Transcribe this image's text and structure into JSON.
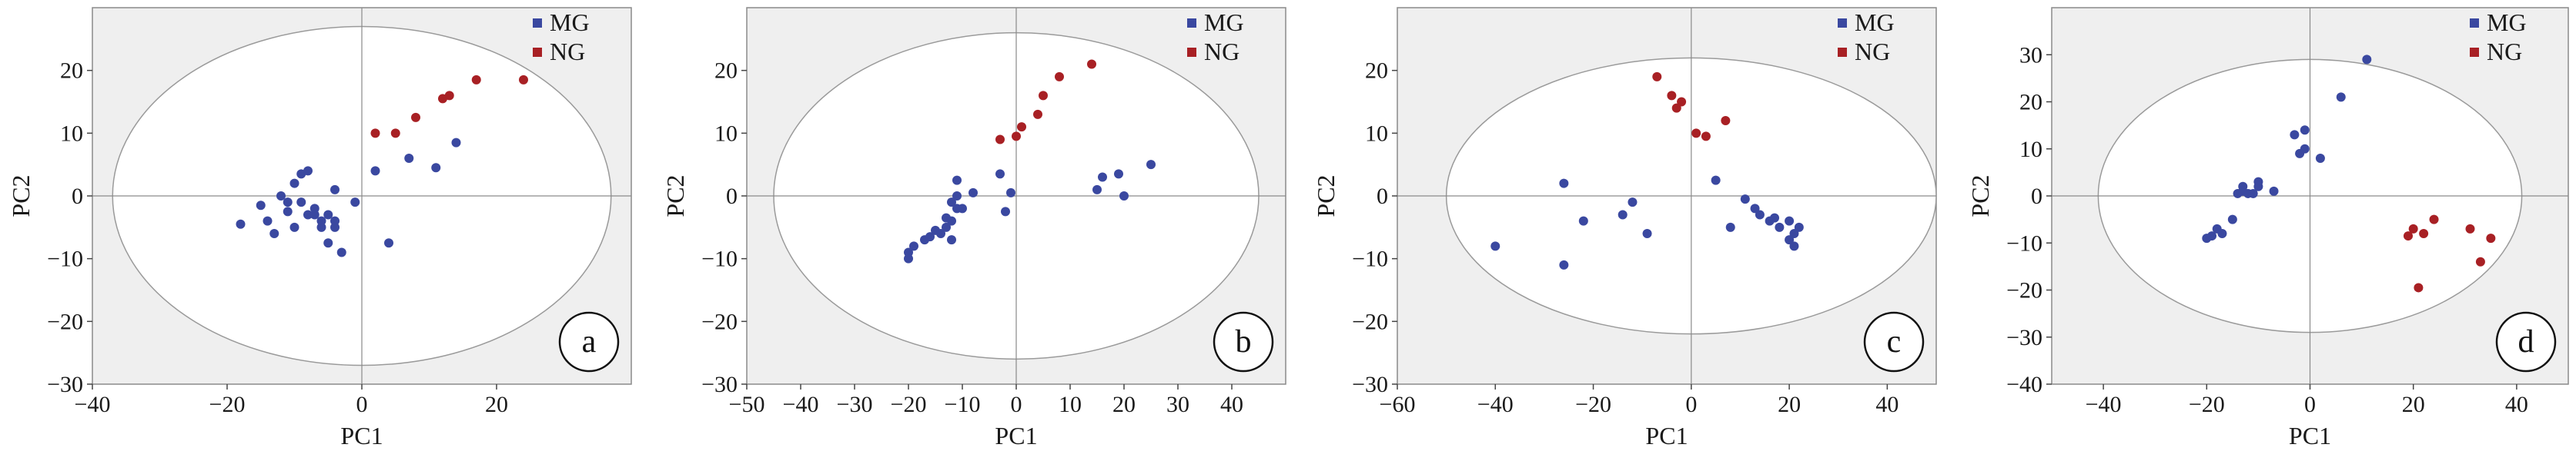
{
  "colors": {
    "MG": "#3a48a0",
    "NG": "#a82024",
    "plot_bg": "#efefef",
    "ellipse_fill": "#ffffff",
    "ellipse_stroke": "#9a9a9a"
  },
  "chart_data": [
    {
      "type": "scatter",
      "panel_label": "a",
      "xlabel": "PC1",
      "ylabel": "PC2",
      "xlim": [
        -40,
        40
      ],
      "ylim": [
        -30,
        30
      ],
      "xticks": [
        -40,
        -20,
        0,
        20
      ],
      "yticks": [
        -30,
        -20,
        -10,
        0,
        10,
        20
      ],
      "xtick_labels": [
        "−40",
        "−20",
        "0",
        "20"
      ],
      "ytick_labels": [
        "−30",
        "−20",
        "−10",
        "0",
        "10",
        "20"
      ],
      "legend": {
        "position": "top-right",
        "entries": [
          "MG",
          "NG"
        ]
      },
      "ellipse": {
        "rx": 37,
        "ry": 27
      },
      "series": [
        {
          "name": "MG",
          "points": [
            [
              -18,
              -4.5
            ],
            [
              -15,
              -1.5
            ],
            [
              -14,
              -4
            ],
            [
              -13,
              -6
            ],
            [
              -12,
              0
            ],
            [
              -11,
              -2.5
            ],
            [
              -11,
              -1
            ],
            [
              -10,
              2
            ],
            [
              -10,
              -5
            ],
            [
              -9,
              -1
            ],
            [
              -9,
              3.5
            ],
            [
              -8,
              4
            ],
            [
              -8,
              -3
            ],
            [
              -7,
              -2
            ],
            [
              -7,
              -3
            ],
            [
              -6,
              -4
            ],
            [
              -6,
              -5
            ],
            [
              -5,
              -7.5
            ],
            [
              -5,
              -3
            ],
            [
              -4,
              1
            ],
            [
              -4,
              -4
            ],
            [
              -4,
              -5
            ],
            [
              -3,
              -9
            ],
            [
              -1,
              -1
            ],
            [
              2,
              4
            ],
            [
              4,
              -7.5
            ],
            [
              7,
              6
            ],
            [
              11,
              4.5
            ],
            [
              14,
              8.5
            ]
          ]
        },
        {
          "name": "NG",
          "points": [
            [
              2,
              10
            ],
            [
              5,
              10
            ],
            [
              8,
              12.5
            ],
            [
              12,
              15.5
            ],
            [
              13,
              16
            ],
            [
              17,
              18.5
            ],
            [
              24,
              18.5
            ]
          ]
        }
      ]
    },
    {
      "type": "scatter",
      "panel_label": "b",
      "xlabel": "PC1",
      "ylabel": "PC2",
      "xlim": [
        -50,
        50
      ],
      "ylim": [
        -30,
        30
      ],
      "xticks": [
        -50,
        -40,
        -30,
        -20,
        -10,
        0,
        10,
        20,
        30,
        40
      ],
      "yticks": [
        -30,
        -20,
        -10,
        0,
        10,
        20
      ],
      "xtick_labels": [
        "−50",
        "−40",
        "−30",
        "−20",
        "−10",
        "0",
        "10",
        "20",
        "30",
        "40"
      ],
      "ytick_labels": [
        "−30",
        "−20",
        "−10",
        "0",
        "10",
        "20"
      ],
      "legend": {
        "position": "top-right",
        "entries": [
          "MG",
          "NG"
        ]
      },
      "ellipse": {
        "rx": 45,
        "ry": 26
      },
      "series": [
        {
          "name": "MG",
          "points": [
            [
              -20,
              -10
            ],
            [
              -20,
              -9
            ],
            [
              -19,
              -8
            ],
            [
              -17,
              -7
            ],
            [
              -16,
              -6.5
            ],
            [
              -15,
              -5.5
            ],
            [
              -14,
              -6
            ],
            [
              -13,
              -3.5
            ],
            [
              -13,
              -5
            ],
            [
              -12,
              -4
            ],
            [
              -12,
              -1
            ],
            [
              -12,
              -7
            ],
            [
              -11,
              -2
            ],
            [
              -11,
              0
            ],
            [
              -11,
              2.5
            ],
            [
              -10,
              -2
            ],
            [
              -8,
              0.5
            ],
            [
              -3,
              3.5
            ],
            [
              -2,
              -2.5
            ],
            [
              -1,
              0.5
            ],
            [
              15,
              1
            ],
            [
              16,
              3
            ],
            [
              19,
              3.5
            ],
            [
              20,
              0
            ],
            [
              25,
              5
            ]
          ]
        },
        {
          "name": "NG",
          "points": [
            [
              -3,
              9
            ],
            [
              0,
              9.5
            ],
            [
              1,
              11
            ],
            [
              4,
              13
            ],
            [
              5,
              16
            ],
            [
              8,
              19
            ],
            [
              14,
              21
            ]
          ]
        }
      ]
    },
    {
      "type": "scatter",
      "panel_label": "c",
      "xlabel": "PC1",
      "ylabel": "PC2",
      "xlim": [
        -60,
        50
      ],
      "ylim": [
        -30,
        30
      ],
      "xticks": [
        -60,
        -40,
        -20,
        0,
        20,
        40
      ],
      "yticks": [
        -30,
        -20,
        -10,
        0,
        10,
        20
      ],
      "xtick_labels": [
        "−60",
        "−40",
        "−20",
        "0",
        "20",
        "40"
      ],
      "ytick_labels": [
        "−30",
        "−20",
        "−10",
        "0",
        "10",
        "20"
      ],
      "legend": {
        "position": "top-right",
        "entries": [
          "MG",
          "NG"
        ]
      },
      "ellipse": {
        "rx": 50,
        "ry": 22
      },
      "series": [
        {
          "name": "MG",
          "points": [
            [
              -40,
              -8
            ],
            [
              -26,
              2
            ],
            [
              -26,
              -11
            ],
            [
              -22,
              -4
            ],
            [
              -14,
              -3
            ],
            [
              -12,
              -1
            ],
            [
              -9,
              -6
            ],
            [
              5,
              2.5
            ],
            [
              8,
              -5
            ],
            [
              11,
              -0.5
            ],
            [
              13,
              -2
            ],
            [
              14,
              -3
            ],
            [
              16,
              -4
            ],
            [
              17,
              -3.5
            ],
            [
              18,
              -5
            ],
            [
              20,
              -4
            ],
            [
              20,
              -7
            ],
            [
              21,
              -6
            ],
            [
              22,
              -5
            ],
            [
              21,
              -8
            ]
          ]
        },
        {
          "name": "NG",
          "points": [
            [
              -7,
              19
            ],
            [
              -4,
              16
            ],
            [
              -3,
              14
            ],
            [
              -2,
              15
            ],
            [
              1,
              10
            ],
            [
              3,
              9.5
            ],
            [
              7,
              12
            ]
          ]
        }
      ]
    },
    {
      "type": "scatter",
      "panel_label": "d",
      "xlabel": "PC1",
      "ylabel": "PC2",
      "xlim": [
        -50,
        50
      ],
      "ylim": [
        -40,
        40
      ],
      "xticks": [
        -40,
        -20,
        0,
        20,
        40
      ],
      "yticks": [
        -40,
        -30,
        -20,
        -10,
        0,
        10,
        20,
        30
      ],
      "xtick_labels": [
        "−40",
        "−20",
        "0",
        "20",
        "40"
      ],
      "ytick_labels": [
        "−40",
        "−30",
        "−20",
        "−10",
        "0",
        "10",
        "20",
        "30"
      ],
      "legend": {
        "position": "top-right",
        "entries": [
          "MG",
          "NG"
        ]
      },
      "ellipse": {
        "rx": 41,
        "ry": 29
      },
      "series": [
        {
          "name": "MG",
          "points": [
            [
              -20,
              -9
            ],
            [
              -19,
              -8.5
            ],
            [
              -18,
              -7
            ],
            [
              -17,
              -8
            ],
            [
              -15,
              -5
            ],
            [
              -14,
              0.5
            ],
            [
              -13,
              1
            ],
            [
              -13,
              2
            ],
            [
              -12,
              0.5
            ],
            [
              -11,
              0.5
            ],
            [
              -10,
              2
            ],
            [
              -10,
              3
            ],
            [
              -7,
              1
            ],
            [
              -3,
              13
            ],
            [
              -2,
              9
            ],
            [
              -1,
              14
            ],
            [
              -1,
              10
            ],
            [
              2,
              8
            ],
            [
              6,
              21
            ],
            [
              11,
              29
            ]
          ]
        },
        {
          "name": "NG",
          "points": [
            [
              19,
              -8.5
            ],
            [
              20,
              -7
            ],
            [
              21,
              -19.5
            ],
            [
              22,
              -8
            ],
            [
              24,
              -5
            ],
            [
              31,
              -7
            ],
            [
              33,
              -14
            ],
            [
              35,
              -9
            ]
          ]
        }
      ]
    }
  ]
}
